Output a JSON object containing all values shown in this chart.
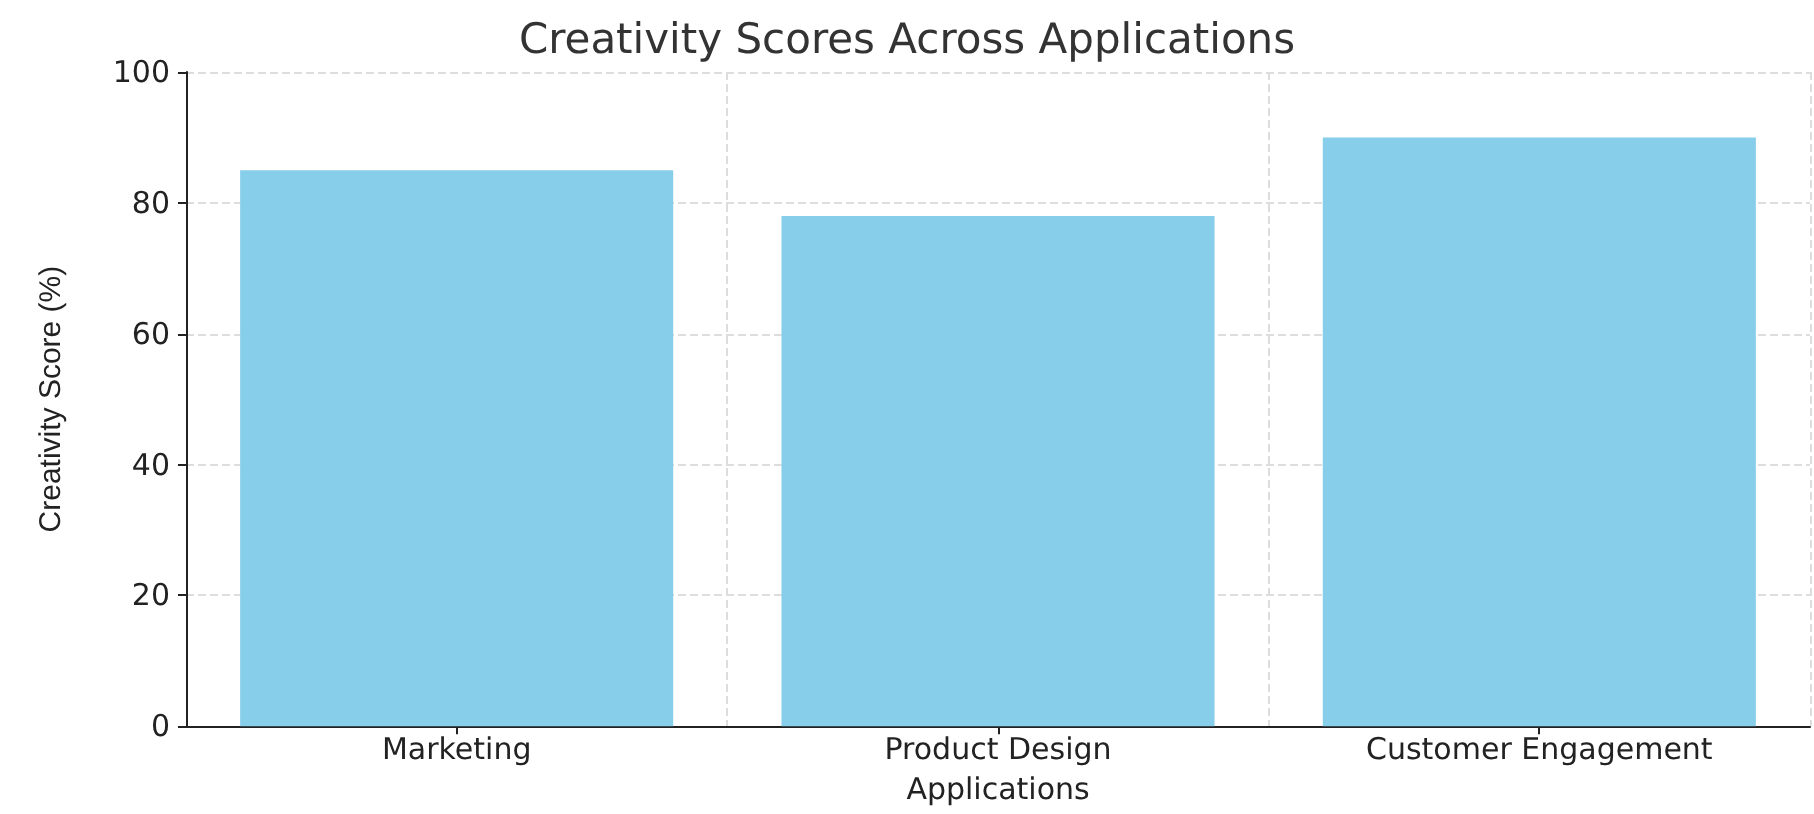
{
  "chart_data": {
    "type": "bar",
    "title": "Creativity Scores Across Applications",
    "xlabel": "Applications",
    "ylabel": "Creativity Score (%)",
    "categories": [
      "Marketing",
      "Product Design",
      "Customer Engagement"
    ],
    "values": [
      85,
      78,
      90
    ],
    "color": "#87ceeb",
    "ylim": [
      0,
      100
    ],
    "yticks": [
      0,
      20,
      40,
      60,
      80,
      100
    ],
    "grid": true
  }
}
